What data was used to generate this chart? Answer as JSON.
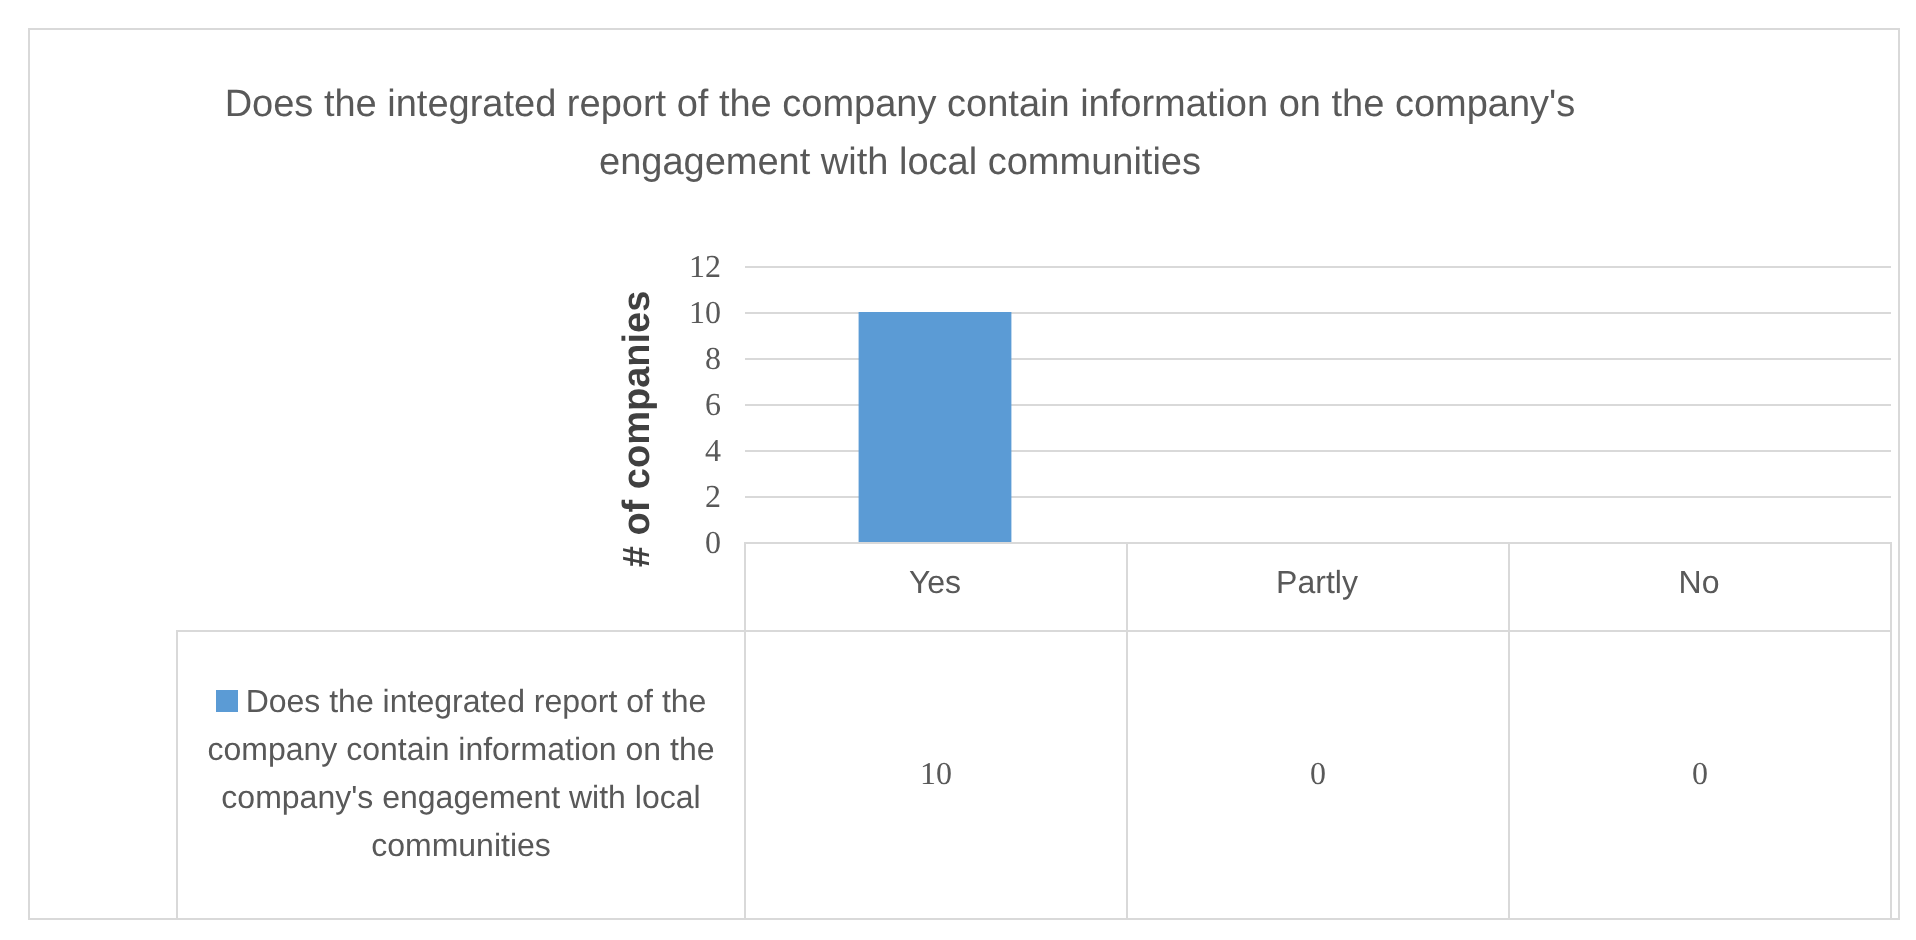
{
  "chart_data": {
    "type": "bar",
    "title": "Does the integrated report of the company contain information on the company's engagement with local communities",
    "ylabel": "# of companies",
    "categories": [
      "Yes",
      "Partly",
      "No"
    ],
    "series": [
      {
        "name": "Does the integrated report of the company contain information on the company's engagement with local communities",
        "color": "#5b9bd5",
        "values": [
          10,
          0,
          0
        ]
      }
    ],
    "ylim": [
      0,
      12
    ],
    "yticks": [
      0,
      2,
      4,
      6,
      8,
      10,
      12
    ],
    "grid": "y",
    "data_labels": true,
    "legend": "bottom left"
  }
}
